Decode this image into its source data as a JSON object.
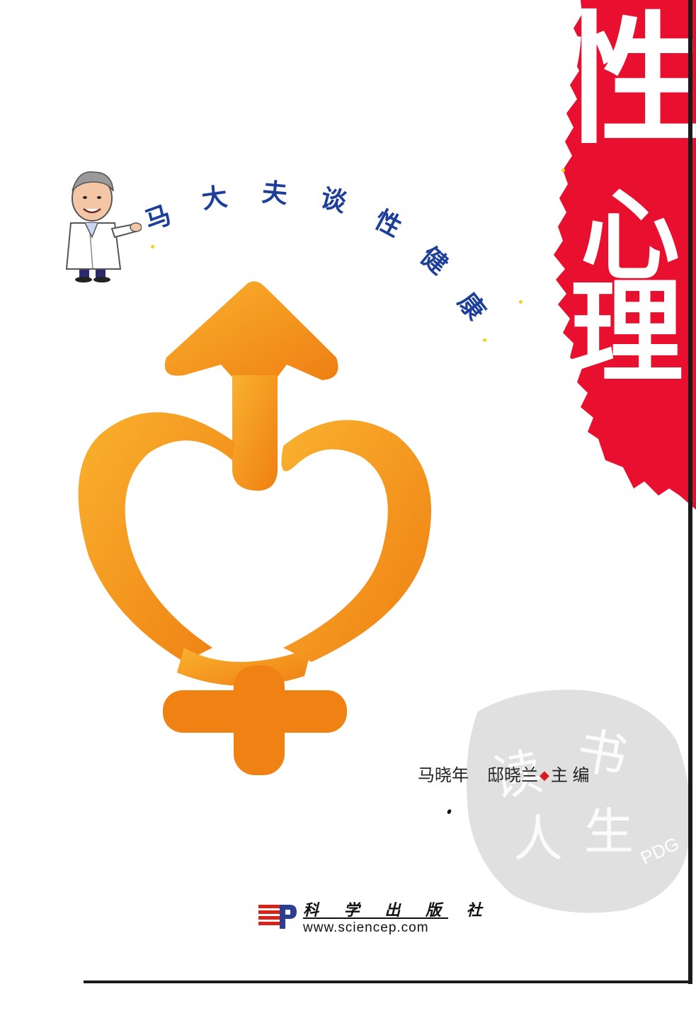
{
  "title": {
    "chars": [
      "性",
      "心",
      "理"
    ],
    "color": "#ffffff",
    "banner_color": "#e8102e"
  },
  "series_title": {
    "chars": [
      "马",
      "大",
      "夫",
      "谈",
      "性",
      "健",
      "康"
    ],
    "color": "#1d3f9a"
  },
  "logo": {
    "description_icon": "male-female-heart-symbol-icon",
    "color_light": "#f7a823",
    "color_dark": "#f08a16"
  },
  "editors": {
    "name1": "马晓年",
    "name2": "邸晓兰",
    "role": "主 编",
    "separator": "◆"
  },
  "publisher": {
    "name": "科 学 出 版 社",
    "url": "www.sciencep.com",
    "logo_icon": "science-press-logo-icon"
  },
  "watermark": {
    "text": "PDG",
    "seal_chars": [
      "书",
      "读",
      "人",
      "生"
    ]
  },
  "mascot": {
    "icon": "doctor-cartoon-icon"
  }
}
